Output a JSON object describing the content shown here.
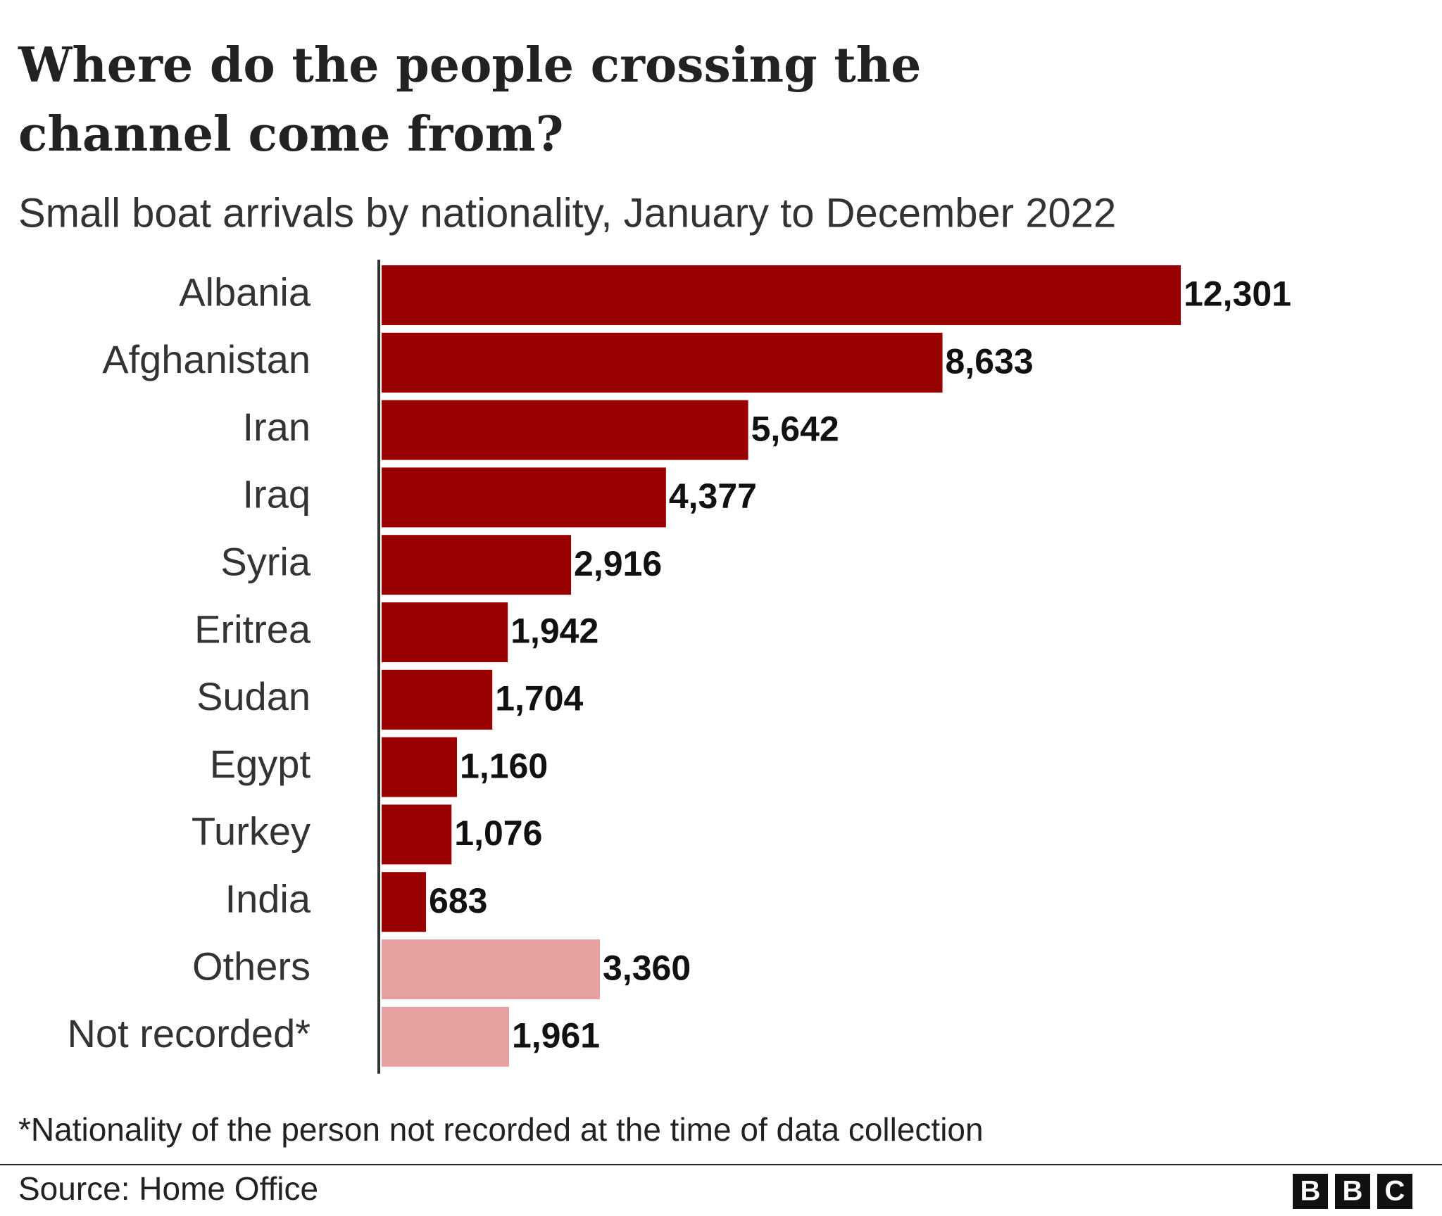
{
  "chart_data": {
    "type": "bar",
    "orientation": "horizontal",
    "title": "Where do the people crossing the channel come from?",
    "subtitle": "Small boat arrivals by nationality, January to December 2022",
    "categories": [
      "Albania",
      "Afghanistan",
      "Iran",
      "Iraq",
      "Syria",
      "Eritrea",
      "Sudan",
      "Egypt",
      "Turkey",
      "India",
      "Others",
      "Not recorded*"
    ],
    "values": [
      12301,
      8633,
      5642,
      4377,
      2916,
      1942,
      1704,
      1160,
      1076,
      683,
      3360,
      1961
    ],
    "value_labels": [
      "12,301",
      "8,633",
      "5,642",
      "4,377",
      "2,916",
      "1,942",
      "1,704",
      "1,160",
      "1,076",
      "683",
      "3,360",
      "1,961"
    ],
    "colors": [
      "#990000",
      "#990000",
      "#990000",
      "#990000",
      "#990000",
      "#990000",
      "#990000",
      "#990000",
      "#990000",
      "#990000",
      "#e5a0a0",
      "#e5a0a0"
    ],
    "footnote": "*Nationality of the person not recorded at the time of data collection",
    "source": "Source: Home Office",
    "logo": [
      "B",
      "B",
      "C"
    ]
  }
}
